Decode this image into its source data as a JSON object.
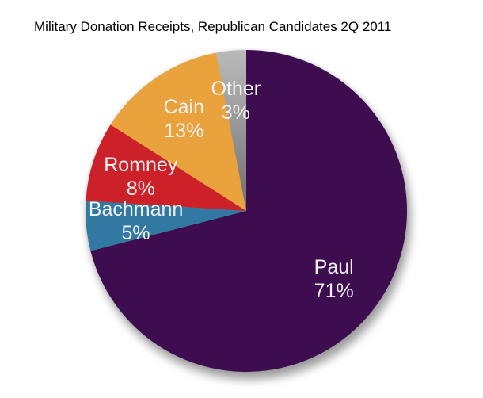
{
  "title": "Military Donation Receipts, Republican Candidates 2Q 2011",
  "chart_data": {
    "type": "pie",
    "title": "Military Donation Receipts, Republican Candidates 2Q 2011",
    "unit": "%",
    "start_angle_deg": 0,
    "direction": "clockwise",
    "legend": "none",
    "labels_on_slices": true,
    "label_color": "#f2f1f2",
    "background": "#ffffff",
    "slices": [
      {
        "name": "Paul",
        "value": 71,
        "color": "#3d0d50"
      },
      {
        "name": "Bachmann",
        "value": 5,
        "color": "#3179a2"
      },
      {
        "name": "Romney",
        "value": 8,
        "color": "#cc2129"
      },
      {
        "name": "Cain",
        "value": 13,
        "color": "#e9a23c"
      },
      {
        "name": "Other",
        "value": 3,
        "color": "#a3a3a3",
        "gradient": [
          "#bababa",
          "#6f6f6f"
        ]
      }
    ]
  }
}
